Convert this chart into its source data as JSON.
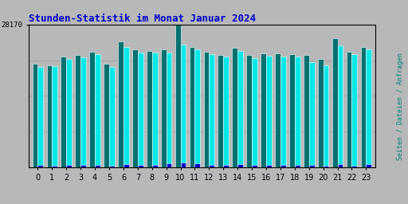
{
  "title": "Stunden-Statistik im Monat Januar 2024",
  "title_color": "#0000cc",
  "background_color": "#b8b8b8",
  "plot_bg_color": "#b8b8b8",
  "x_labels": [
    "0",
    "1",
    "2",
    "3",
    "4",
    "5",
    "6",
    "7",
    "8",
    "9",
    "10",
    "11",
    "12",
    "13",
    "14",
    "15",
    "16",
    "17",
    "18",
    "19",
    "20",
    "21",
    "22",
    "23"
  ],
  "ytick_label": "28170",
  "right_label": "Seiten / Dateien / Anfragen",
  "right_label_color": "#008080",
  "ylim_max": 28170,
  "green_values": [
    20500,
    20100,
    21800,
    22200,
    22800,
    20500,
    24800,
    23200,
    23000,
    23200,
    28170,
    23800,
    22800,
    22200,
    23500,
    22100,
    22500,
    22400,
    22300,
    22200,
    21300,
    25500,
    22800,
    23800
  ],
  "cyan_values": [
    19800,
    19900,
    21300,
    21700,
    22300,
    19800,
    23800,
    22700,
    22600,
    22700,
    24200,
    23300,
    22300,
    21800,
    23000,
    21600,
    22000,
    21900,
    21800,
    20700,
    20100,
    24000,
    22300,
    23300
  ],
  "blue_values": [
    500,
    300,
    500,
    500,
    500,
    300,
    600,
    500,
    500,
    700,
    900,
    700,
    500,
    500,
    600,
    500,
    500,
    500,
    500,
    500,
    300,
    600,
    300,
    600
  ],
  "green_color": "#007070",
  "cyan_color": "#00e8e8",
  "blue_color": "#0000cc",
  "bar_width": 0.38,
  "grid_color": "#999999",
  "grid_linewidth": 0.5,
  "n_gridlines": 4
}
